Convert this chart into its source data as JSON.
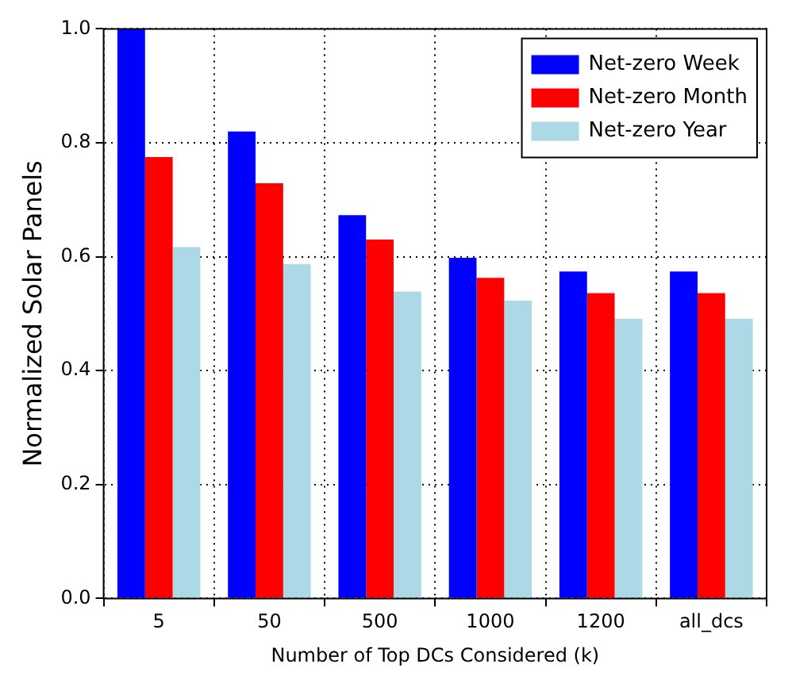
{
  "chart_data": {
    "type": "bar",
    "xlabel": "Number of Top DCs Considered (k)",
    "ylabel": "Normalized Solar Panels",
    "categories": [
      "5",
      "50",
      "500",
      "1000",
      "1200",
      "all_dcs"
    ],
    "series": [
      {
        "name": "Net-zero Week",
        "color": "#0000ff",
        "values": [
          1.0,
          0.82,
          0.673,
          0.598,
          0.574,
          0.574
        ]
      },
      {
        "name": "Net-zero Month",
        "color": "#ff0000",
        "values": [
          0.775,
          0.729,
          0.63,
          0.563,
          0.536,
          0.536
        ]
      },
      {
        "name": "Net-zero Year",
        "color": "#add8e6",
        "values": [
          0.617,
          0.587,
          0.539,
          0.523,
          0.491,
          0.491
        ]
      }
    ],
    "ylim": [
      0,
      1
    ],
    "yticks": [
      {
        "value": 0,
        "label": "0.0"
      },
      {
        "value": 0.2,
        "label": "0.2"
      },
      {
        "value": 0.4,
        "label": "0.4"
      },
      {
        "value": 0.6,
        "label": "0.6"
      },
      {
        "value": 0.8,
        "label": "0.8"
      },
      {
        "value": 1,
        "label": "1.0"
      }
    ],
    "grid": true,
    "legend": "top right"
  }
}
